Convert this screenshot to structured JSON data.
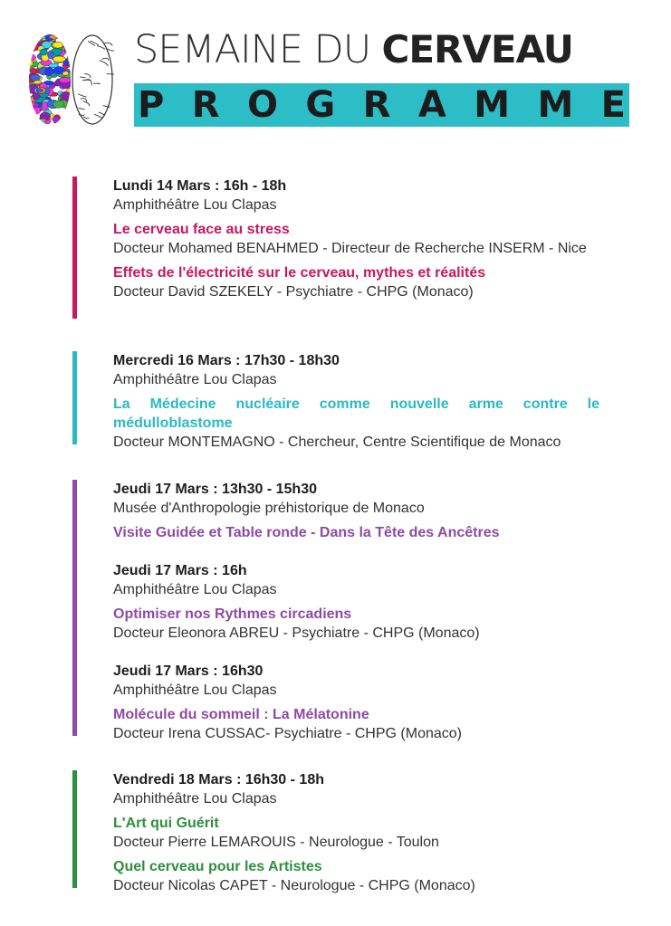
{
  "header": {
    "title_light": "SEMAINE DU",
    "title_bold": "CERVEAU",
    "subtitle": "PROGRAMME",
    "accent": "#2dbdc6",
    "logo": "brain-icon"
  },
  "sections": [
    {
      "color": "#c8185f",
      "events": [
        {
          "heading": "Lundi 14 Mars : 16h - 18h",
          "venue": "Amphithéâtre Lou Clapas",
          "talks": [
            {
              "title": "Le cerveau face au stress",
              "speaker": "Docteur Mohamed BENAHMED - Directeur de Recherche INSERM - Nice"
            },
            {
              "title": "Effets de l'électricité sur le cerveau, mythes et réalités",
              "speaker": "Docteur David SZEKELY - Psychiatre - CHPG (Monaco)"
            }
          ]
        }
      ]
    },
    {
      "color": "#2bb9c2",
      "events": [
        {
          "heading": "Mercredi 16 Mars : 17h30 - 18h30",
          "venue": "Amphithéâtre Lou Clapas",
          "talks": [
            {
              "title": "La Médecine nucléaire comme nouvelle arme contre le médulloblastome",
              "speaker": "Docteur MONTEMAGNO - Chercheur, Centre Scientifique de Monaco"
            }
          ]
        }
      ]
    },
    {
      "color": "#8e4aa6",
      "events": [
        {
          "heading": "Jeudi 17 Mars : 13h30 - 15h30",
          "venue": "Musée d'Anthropologie préhistorique de Monaco",
          "talks": [
            {
              "title": "Visite Guidée et Table ronde - Dans la Tête des Ancêtres",
              "speaker": ""
            }
          ]
        },
        {
          "heading": "Jeudi 17 Mars : 16h",
          "venue": "Amphithéâtre Lou Clapas",
          "talks": [
            {
              "title": "Optimiser nos Rythmes circadiens",
              "speaker": "Docteur Eleonora ABREU - Psychiatre - CHPG (Monaco)"
            }
          ]
        },
        {
          "heading": "Jeudi 17 Mars : 16h30",
          "venue": "Amphithéâtre Lou Clapas",
          "talks": [
            {
              "title": "Molécule du sommeil : La Mélatonine",
              "speaker": "Docteur Irena CUSSAC- Psychiatre - CHPG (Monaco)"
            }
          ]
        }
      ]
    },
    {
      "color": "#2e8f3e",
      "events": [
        {
          "heading": "Vendredi 18 Mars : 16h30 - 18h",
          "venue": "Amphithéâtre Lou Clapas",
          "talks": [
            {
              "title": "L'Art qui Guérit",
              "speaker": "Docteur Pierre LEMAROUIS - Neurologue - Toulon"
            },
            {
              "title": "Quel cerveau pour les Artistes",
              "speaker": "Docteur Nicolas CAPET - Neurologue - CHPG (Monaco)"
            }
          ]
        }
      ]
    }
  ]
}
